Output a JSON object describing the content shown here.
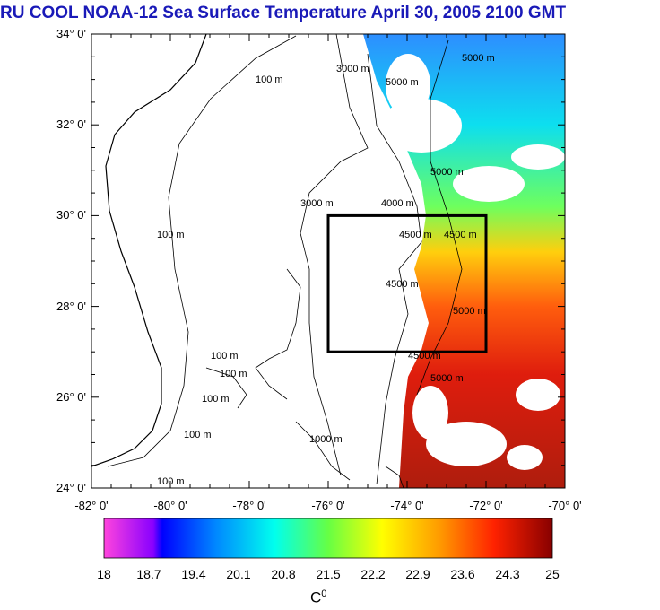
{
  "title": "RU COOL  NOAA-12 Sea Surface Temperature April 30, 2005 2100 GMT",
  "lat_labels": [
    "34° 0'",
    "32° 0'",
    "30° 0'",
    "28° 0'",
    "26° 0'",
    "24° 0'"
  ],
  "lon_labels": [
    "-82° 0'",
    "-80° 0'",
    "-78° 0'",
    "-76° 0'",
    "-74° 0'",
    "-72° 0'",
    "-70° 0'"
  ],
  "contour_labels": [
    "100 m",
    "100 m",
    "100 m",
    "100 m",
    "100 m",
    "100 m",
    "100 m",
    "1000 m",
    "3000 m",
    "3000 m",
    "4000 m",
    "4500 m",
    "4500 m",
    "4500 m",
    "4500 m",
    "5000 m",
    "5000 m",
    "5000 m",
    "5000 m",
    "5000 m"
  ],
  "colorbar": {
    "ticks": [
      "18",
      "18.7",
      "19.4",
      "20.1",
      "20.8",
      "21.5",
      "22.2",
      "22.9",
      "23.6",
      "24.3",
      "25"
    ],
    "unit": "C",
    "unit_sup": "0",
    "min": 18,
    "max": 25
  },
  "map": {
    "lat_range": [
      24,
      34
    ],
    "lon_range": [
      -82,
      -70
    ],
    "box": {
      "lon": [
        -76,
        -72
      ],
      "lat": [
        27,
        30
      ]
    },
    "colors": {
      "land": "#ffffff",
      "frame": "#000000",
      "title": "#1a1ab8"
    }
  }
}
